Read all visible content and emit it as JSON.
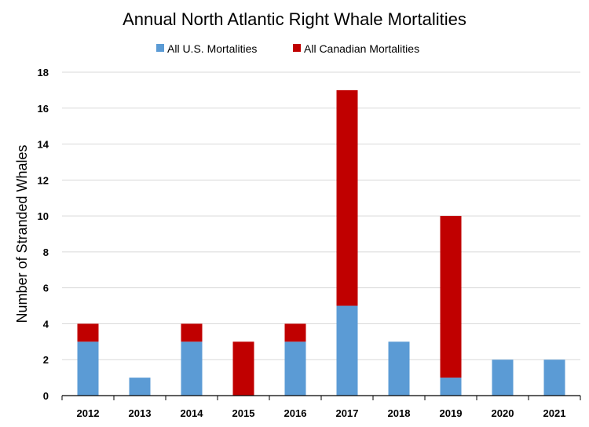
{
  "chart_data": {
    "type": "bar",
    "stacked": true,
    "title": "Annual North Atlantic Right Whale Mortalities",
    "xlabel": "",
    "ylabel": "Number of  Stranded Whales",
    "ylim": [
      0,
      18
    ],
    "yticks": [
      0,
      2,
      4,
      6,
      8,
      10,
      12,
      14,
      16,
      18
    ],
    "grid": true,
    "legend_position": "top",
    "categories": [
      "2012",
      "2013",
      "2014",
      "2015",
      "2016",
      "2017",
      "2018",
      "2019",
      "2020",
      "2021"
    ],
    "series": [
      {
        "name": "All U.S. Mortalities",
        "color": "#5b9bd5",
        "values": [
          3,
          1,
          3,
          0,
          3,
          5,
          3,
          1,
          2,
          2
        ]
      },
      {
        "name": "All Canadian Mortalities",
        "color": "#c00000",
        "values": [
          1,
          0,
          1,
          3,
          1,
          12,
          0,
          9,
          0,
          0
        ]
      }
    ]
  }
}
